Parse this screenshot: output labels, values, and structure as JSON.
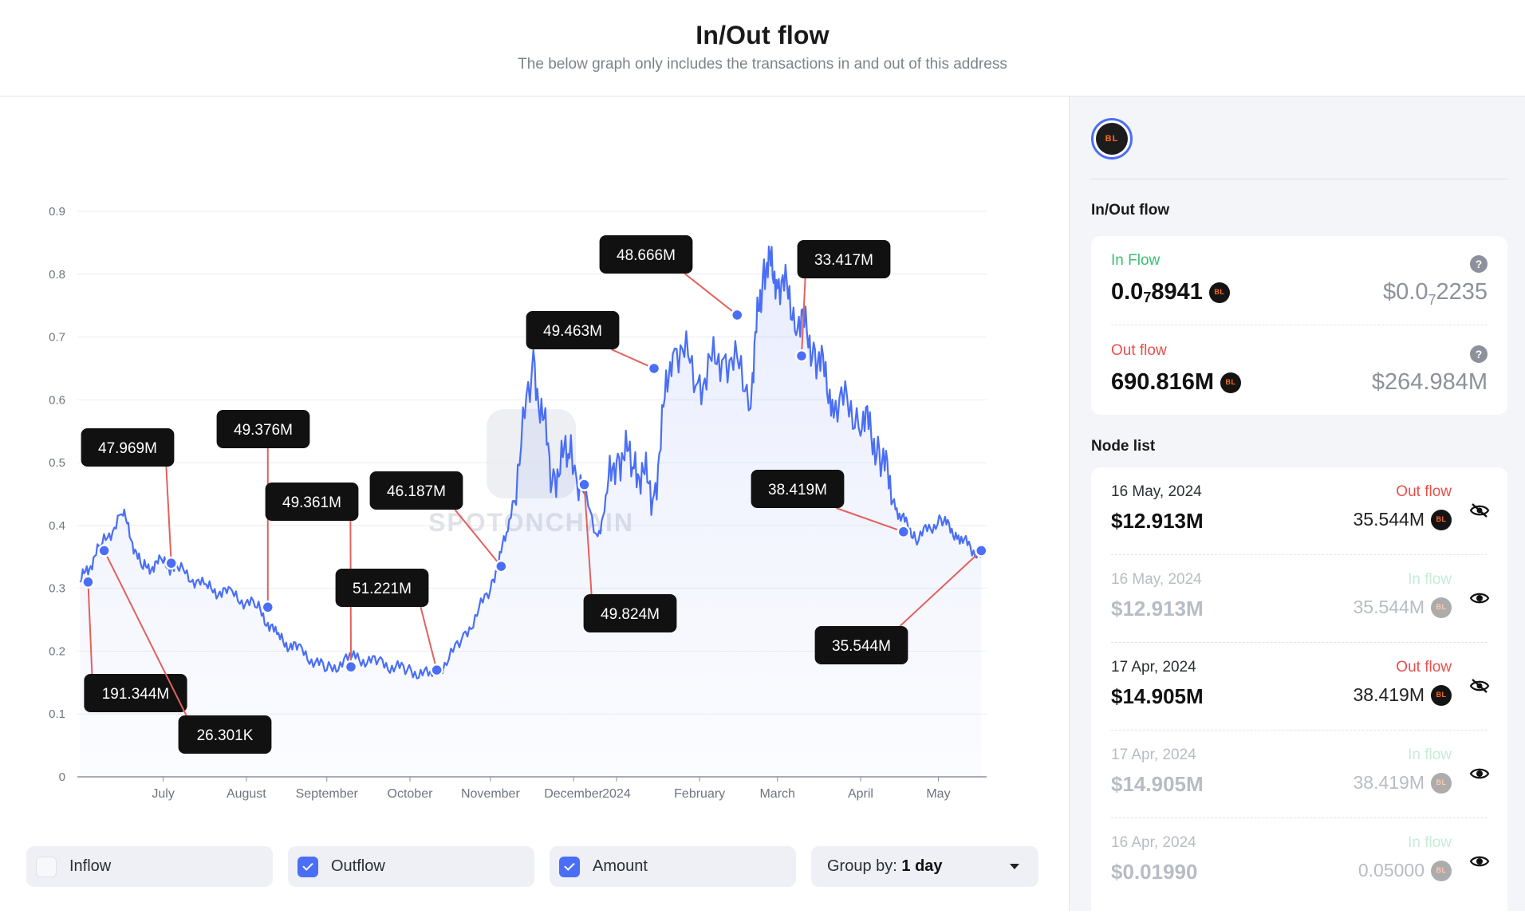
{
  "header": {
    "title": "In/Out flow",
    "subtitle": "The below graph only includes the transactions in and out of this address"
  },
  "chart_data": {
    "type": "area",
    "title": "",
    "xlabel": "",
    "ylabel": "",
    "ylim": [
      0,
      0.9
    ],
    "y_ticks": [
      "0",
      "0.1",
      "0.2",
      "0.3",
      "0.4",
      "0.5",
      "0.6",
      "0.7",
      "0.8",
      "0.9"
    ],
    "x_ticks": [
      "July",
      "August",
      "September",
      "October",
      "November",
      "December",
      "2024",
      "February",
      "March",
      "April",
      "May"
    ],
    "grid": true,
    "watermark": "SPOTONCHAIN",
    "series": [
      {
        "x": [
          "2023-06-15",
          "2023-06-22",
          "2023-07-01",
          "2023-07-08",
          "2023-07-15",
          "2023-07-22",
          "2023-08-01",
          "2023-08-10",
          "2023-08-20",
          "2023-08-28",
          "2023-09-05",
          "2023-09-15",
          "2023-09-25",
          "2023-10-05",
          "2023-10-15",
          "2023-10-25",
          "2023-11-05",
          "2023-11-15",
          "2023-11-22",
          "2023-12-01",
          "2023-12-08",
          "2023-12-15",
          "2023-12-25",
          "2024-01-01",
          "2024-01-08",
          "2024-01-15",
          "2024-01-22",
          "2024-02-01",
          "2024-02-10",
          "2024-02-20",
          "2024-02-25",
          "2024-03-01",
          "2024-03-08",
          "2024-03-15",
          "2024-03-22",
          "2024-04-01",
          "2024-04-08",
          "2024-04-15",
          "2024-04-22",
          "2024-05-01",
          "2024-05-08",
          "2024-05-16"
        ],
        "values": [
          0.31,
          0.36,
          0.42,
          0.33,
          0.34,
          0.33,
          0.3,
          0.29,
          0.27,
          0.22,
          0.2,
          0.17,
          0.19,
          0.18,
          0.17,
          0.16,
          0.22,
          0.3,
          0.4,
          0.66,
          0.48,
          0.52,
          0.38,
          0.52,
          0.5,
          0.45,
          0.7,
          0.63,
          0.68,
          0.62,
          0.82,
          0.8,
          0.74,
          0.68,
          0.6,
          0.58,
          0.52,
          0.42,
          0.38,
          0.41,
          0.38,
          0.35
        ]
      }
    ],
    "annotations": [
      {
        "label": "191.344M",
        "x": "2023-06-18",
        "y": 0.31
      },
      {
        "label": "26.301K",
        "x": "2023-06-24",
        "y": 0.36
      },
      {
        "label": "47.969M",
        "x": "2023-07-19",
        "y": 0.34
      },
      {
        "label": "49.376M",
        "x": "2023-08-24",
        "y": 0.27
      },
      {
        "label": "49.361M",
        "x": "2023-09-24",
        "y": 0.175
      },
      {
        "label": "51.221M",
        "x": "2023-10-26",
        "y": 0.17
      },
      {
        "label": "46.187M",
        "x": "2023-11-19",
        "y": 0.335
      },
      {
        "label": "49.463M",
        "x": "2024-01-15",
        "y": 0.65
      },
      {
        "label": "49.824M",
        "x": "2023-12-20",
        "y": 0.465
      },
      {
        "label": "48.666M",
        "x": "2024-02-15",
        "y": 0.735
      },
      {
        "label": "33.417M",
        "x": "2024-03-10",
        "y": 0.67
      },
      {
        "label": "38.419M",
        "x": "2024-04-17",
        "y": 0.39
      },
      {
        "label": "35.544M",
        "x": "2024-05-16",
        "y": 0.36
      }
    ]
  },
  "controls": {
    "inflow": {
      "label": "Inflow",
      "checked": false
    },
    "outflow": {
      "label": "Outflow",
      "checked": true
    },
    "amount": {
      "label": "Amount",
      "checked": true
    },
    "group_prefix": "Group by:",
    "group_value": "1 day"
  },
  "side": {
    "token_logo_text": "BL",
    "inout_title": "In/Out flow",
    "inflow": {
      "label": "In Flow",
      "amount_main": "0.0",
      "amount_sub": "7",
      "amount_rest": "8941",
      "usd_main": "$0.0",
      "usd_sub": "7",
      "usd_rest": "2235"
    },
    "outflow": {
      "label": "Out flow",
      "amount": "690.816M",
      "usd": "$264.984M"
    },
    "help_icon": "?",
    "node_list_title": "Node list",
    "nodes": [
      {
        "date": "16 May, 2024",
        "value": "$12.913M",
        "direction": "Out flow",
        "tokens": "35.544M",
        "eye": "eye-slash-icon"
      },
      {
        "date": "16 May, 2024",
        "value": "$12.913M",
        "direction": "In flow",
        "tokens": "35.544M",
        "eye": "eye-icon"
      },
      {
        "date": "17 Apr, 2024",
        "value": "$14.905M",
        "direction": "Out flow",
        "tokens": "38.419M",
        "eye": "eye-slash-icon"
      },
      {
        "date": "17 Apr, 2024",
        "value": "$14.905M",
        "direction": "In flow",
        "tokens": "38.419M",
        "eye": "eye-icon"
      },
      {
        "date": "16 Apr, 2024",
        "value": "$0.01990",
        "direction": "In flow",
        "tokens": "0.05000",
        "eye": "eye-icon"
      }
    ]
  },
  "colors": {
    "line": "#4a6ef5",
    "annotation_link": "#e2615c",
    "in_flow": "#3cbf72",
    "out_flow": "#e8504c",
    "label_bg": "#111111"
  }
}
